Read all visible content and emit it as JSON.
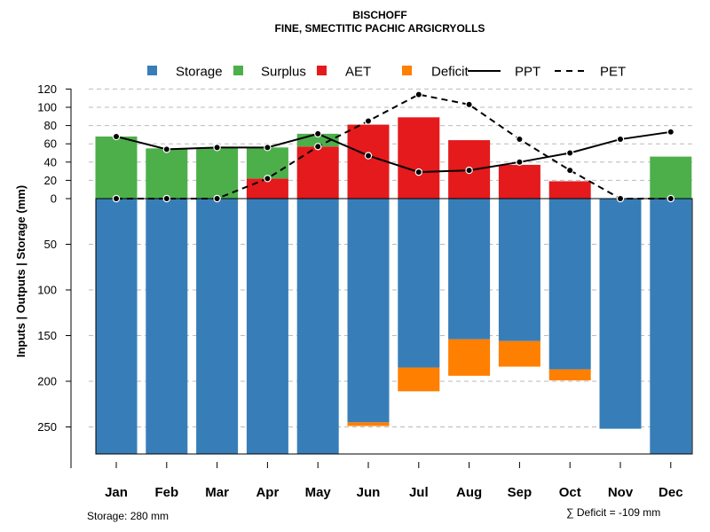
{
  "chart_data": {
    "type": "bar",
    "title": "BISCHOFF",
    "subtitle": "FINE, SMECTITIC PACHIC ARGICRYOLLS",
    "ylabel": "Inputs | Outputs | Storage     (mm)",
    "categories": [
      "Jan",
      "Feb",
      "Mar",
      "Apr",
      "May",
      "Jun",
      "Jul",
      "Aug",
      "Sep",
      "Oct",
      "Nov",
      "Dec"
    ],
    "y_ticks_up": [
      "0",
      "20",
      "40",
      "60",
      "80",
      "100",
      "120"
    ],
    "y_ticks_down": [
      "50",
      "100",
      "150",
      "200",
      "250"
    ],
    "upper_ylim": [
      0,
      120
    ],
    "lower_ylim": [
      0,
      280
    ],
    "legend": [
      {
        "label": "Storage",
        "kind": "square",
        "color": "#377EB8"
      },
      {
        "label": "Surplus",
        "kind": "square",
        "color": "#4DAF4A"
      },
      {
        "label": "AET",
        "kind": "square",
        "color": "#E41A1C"
      },
      {
        "label": "Deficit",
        "kind": "square",
        "color": "#FF7F00"
      },
      {
        "label": "PPT",
        "kind": "solid-line",
        "color": "#000000"
      },
      {
        "label": "PET",
        "kind": "dashed-line",
        "color": "#000000"
      }
    ],
    "colors": {
      "storage": "#377EB8",
      "surplus": "#4DAF4A",
      "aet": "#E41A1C",
      "deficit": "#FF7F00",
      "line": "#000000",
      "grid": "#BBBBBB"
    },
    "series": [
      {
        "name": "AET",
        "values": [
          0,
          0,
          0,
          22,
          57,
          81,
          89,
          64,
          37,
          19,
          0,
          0
        ]
      },
      {
        "name": "Surplus",
        "values": [
          68,
          55,
          56,
          34,
          14,
          0,
          0,
          0,
          0,
          0,
          0,
          46
        ]
      },
      {
        "name": "Storage",
        "values": [
          280,
          280,
          280,
          280,
          280,
          245,
          185,
          154,
          156,
          187,
          252,
          280
        ]
      },
      {
        "name": "Deficit",
        "values": [
          0,
          0,
          0,
          0,
          0,
          4,
          26,
          40,
          28,
          12,
          0,
          0
        ]
      },
      {
        "name": "PPT",
        "values": [
          68,
          54,
          56,
          56,
          71,
          47,
          29,
          31,
          40,
          50,
          65,
          73
        ]
      },
      {
        "name": "PET",
        "values": [
          0,
          0,
          0,
          22,
          57,
          85,
          114,
          103,
          65,
          31,
          0,
          0
        ]
      }
    ],
    "storage_note": "Storage: 280 mm",
    "deficit_note": "∑ Deficit = -109 mm"
  }
}
